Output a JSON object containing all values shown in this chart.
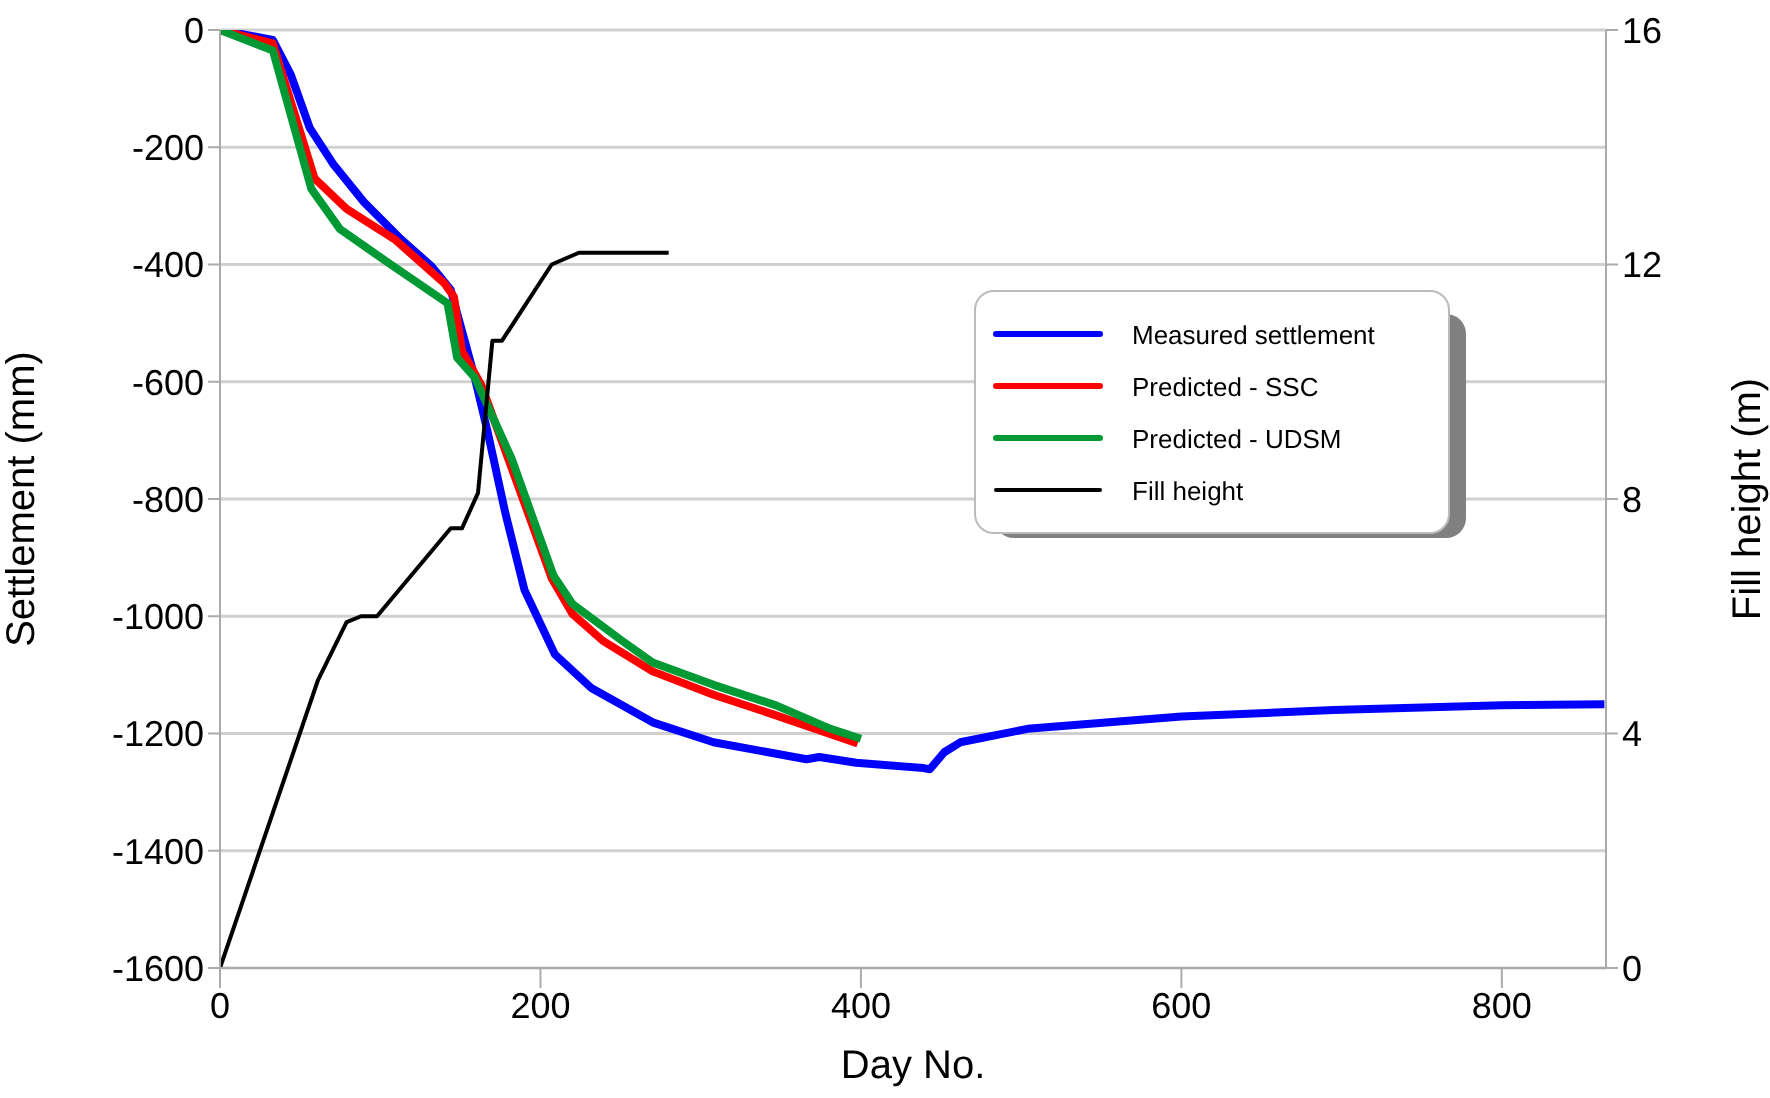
{
  "chart_data": {
    "type": "line",
    "xlabel": "Day No.",
    "ylabel": "Settlement (mm)",
    "y2label": "Fill height (m)",
    "xlim": [
      0,
      865
    ],
    "xticks": [
      0,
      200,
      400,
      600,
      800
    ],
    "ylim": [
      -1600,
      0
    ],
    "yticks": [
      -1600,
      -1400,
      -1200,
      -1000,
      -800,
      -600,
      -400,
      -200,
      0
    ],
    "y2lim": [
      0,
      16
    ],
    "y2ticks": [
      0,
      4,
      8,
      12,
      16
    ],
    "grid": "y",
    "legend": "top right",
    "marker": "none",
    "line_style": "solid",
    "series": [
      {
        "name": "Measured settlement",
        "color": "#0000ff",
        "x": [
          0,
          33,
          44,
          56,
          71,
          90,
          113,
          132,
          144,
          151,
          159,
          167,
          178,
          190,
          209,
          232,
          270,
          308,
          366,
          374,
          397,
          439,
          443,
          452,
          462,
          504,
          600,
          695,
          800,
          864
        ],
        "values": [
          0,
          -17,
          -75,
          -167,
          -230,
          -294,
          -357,
          -403,
          -443,
          -513,
          -593,
          -685,
          -823,
          -955,
          -1065,
          -1123,
          -1181,
          -1215,
          -1244,
          -1240,
          -1250,
          -1259,
          -1261,
          -1232,
          -1215,
          -1192,
          -1171,
          -1160,
          -1152,
          -1150
        ]
      },
      {
        "name": "Predicted - SSC",
        "color": "#ff0000",
        "x": [
          0,
          33,
          59,
          79,
          109,
          140,
          146,
          151,
          163,
          186,
          207,
          220,
          239,
          270,
          308,
          347,
          398
        ],
        "values": [
          0,
          -23,
          -253,
          -305,
          -357,
          -432,
          -455,
          -547,
          -605,
          -777,
          -935,
          -996,
          -1042,
          -1094,
          -1134,
          -1169,
          -1217
        ]
      },
      {
        "name": "Predicted - UDSM",
        "color": "#009933",
        "x": [
          0,
          33,
          57,
          75,
          105,
          142,
          148,
          159,
          182,
          208,
          220,
          251,
          270,
          308,
          347,
          381,
          400
        ],
        "values": [
          0,
          -35,
          -271,
          -340,
          -397,
          -466,
          -559,
          -593,
          -731,
          -930,
          -979,
          -1042,
          -1079,
          -1117,
          -1152,
          -1192,
          -1209
        ]
      },
      {
        "name": "Fill height",
        "color": "#000000",
        "axis": "y2",
        "x": [
          0,
          61,
          79,
          88,
          98,
          144,
          151,
          161,
          170,
          176,
          207,
          224,
          280
        ],
        "values": [
          0,
          4.9,
          5.9,
          6,
          6,
          7.5,
          7.5,
          8.1,
          10.7,
          10.7,
          12,
          12.2,
          12.2
        ]
      }
    ]
  }
}
